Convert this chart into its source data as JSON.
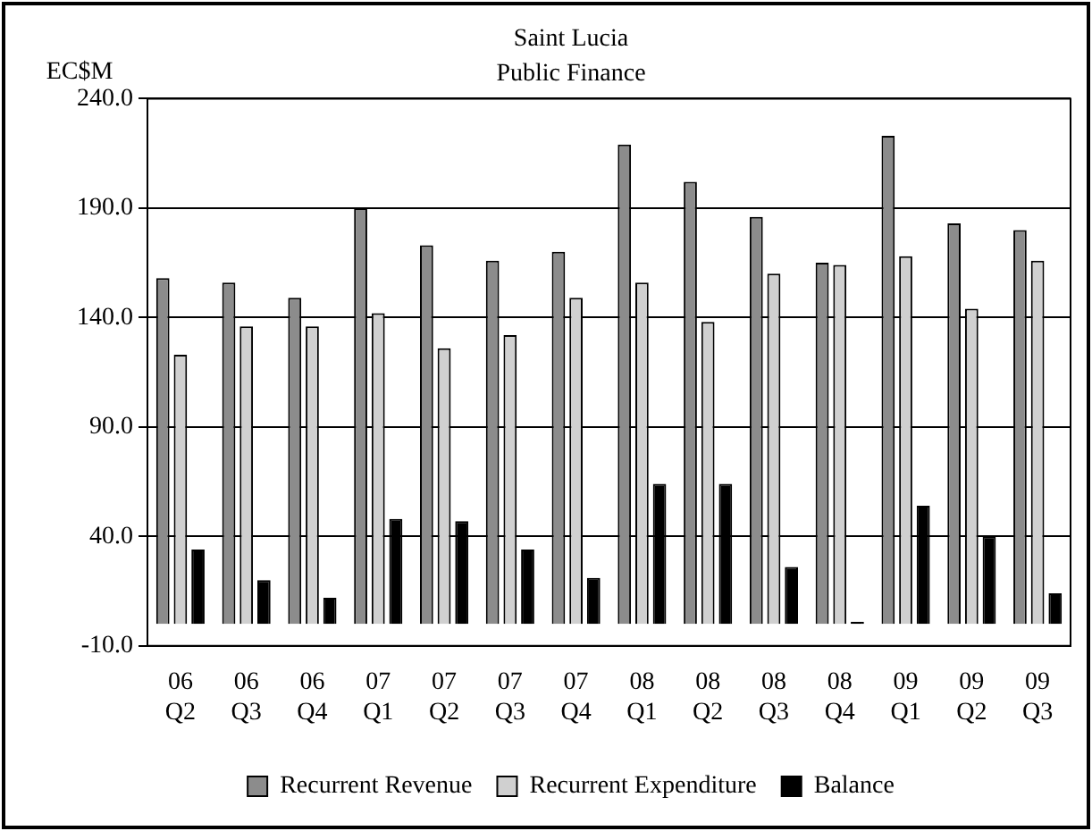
{
  "chart_data": {
    "type": "bar",
    "title": [
      "Saint Lucia",
      "Public Finance"
    ],
    "ylabel": "EC$M",
    "categories": [
      "06 Q2",
      "06 Q3",
      "06 Q4",
      "07 Q1",
      "07 Q2",
      "07 Q3",
      "07 Q4",
      "08 Q1",
      "08 Q2",
      "08 Q3",
      "08 Q4",
      "09 Q1",
      "09 Q2",
      "09 Q3"
    ],
    "series": [
      {
        "name": "Recurrent Revenue",
        "color": "#8c8c8c",
        "values": [
          158,
          156,
          149,
          190,
          173,
          166,
          170,
          219,
          202,
          186,
          165,
          223,
          183,
          180
        ]
      },
      {
        "name": "Recurrent Expenditure",
        "color": "#d0d0d0",
        "values": [
          123,
          136,
          136,
          142,
          126,
          132,
          149,
          156,
          138,
          160,
          164,
          168,
          144,
          166
        ]
      },
      {
        "name": "Balance",
        "color": "#000000",
        "values": [
          34,
          20,
          12,
          48,
          47,
          34,
          21,
          64,
          64,
          26,
          1,
          54,
          40,
          14
        ]
      }
    ],
    "ylim": [
      -10,
      240
    ],
    "yticks": [
      {
        "value": -10,
        "label": "-10.0"
      },
      {
        "value": 40,
        "label": "40.0"
      },
      {
        "value": 90,
        "label": "90.0"
      },
      {
        "value": 140,
        "label": "140.0"
      },
      {
        "value": 190,
        "label": "190.0"
      },
      {
        "value": 240,
        "label": "240.0"
      }
    ],
    "grid": "y",
    "legend": "bottom"
  }
}
